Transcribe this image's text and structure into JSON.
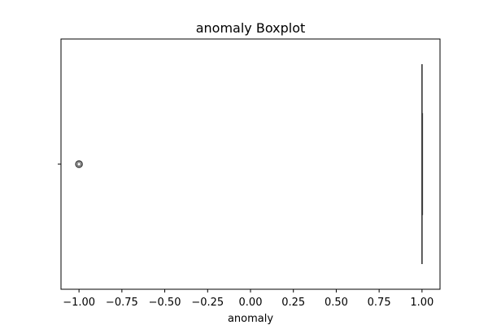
{
  "chart_data": {
    "type": "boxplot",
    "orientation": "horizontal",
    "title": "anomaly Boxplot",
    "xlabel": "anomaly",
    "ylabel": "",
    "xlim": [
      -1.105,
      1.105
    ],
    "xticks": [
      -1.0,
      -0.75,
      -0.5,
      -0.25,
      0.0,
      0.25,
      0.5,
      0.75,
      1.0
    ],
    "xtick_labels": [
      "−1.00",
      "−0.75",
      "−0.50",
      "−0.25",
      "0.00",
      "0.25",
      "0.50",
      "0.75",
      "1.00"
    ],
    "box": {
      "min": 1.0,
      "q1": 1.0,
      "median": 1.0,
      "q3": 1.0,
      "max": 1.0
    },
    "outliers": [
      -1.0
    ],
    "grid": false,
    "legend": "none",
    "colors": {
      "box_line": "#3f3f3f",
      "axes": "#000000"
    }
  }
}
